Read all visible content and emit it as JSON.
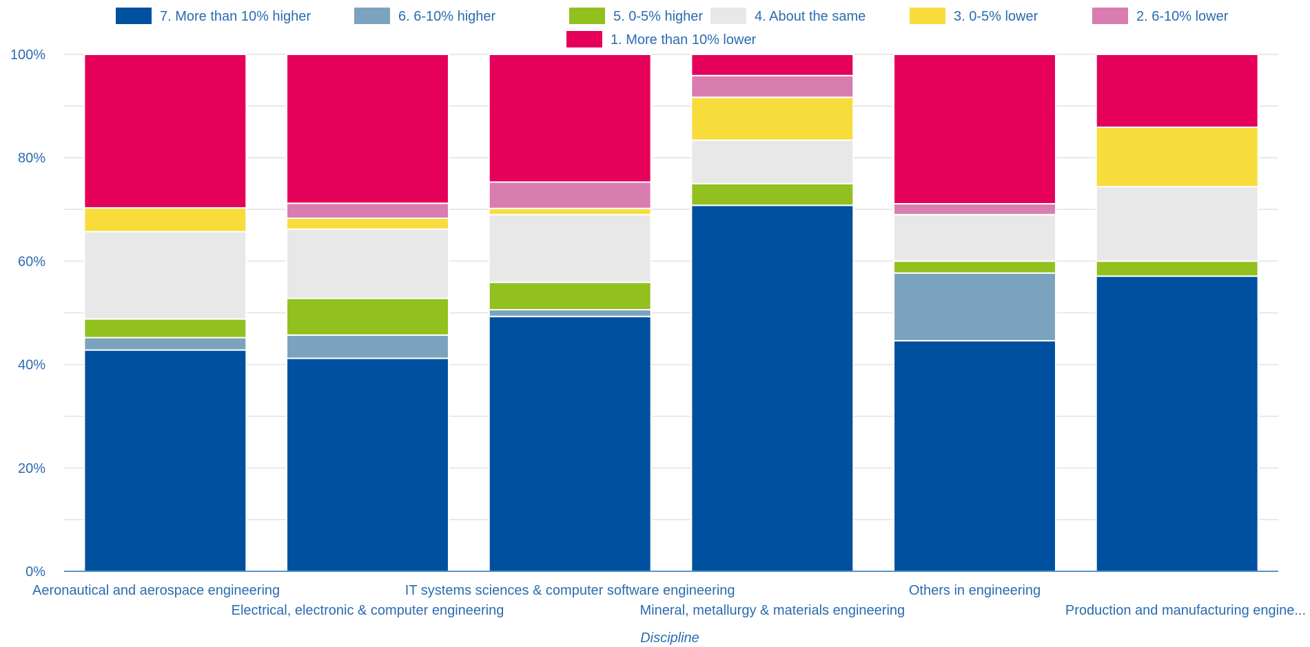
{
  "chart_data": {
    "type": "bar",
    "stacked": true,
    "normalized": true,
    "categories": [
      "Aeronautical and aerospace engineering",
      "Electrical, electronic & computer engineering",
      "IT systems sciences & computer software engineering",
      "Mineral, metallurgy & materials engineering",
      "Others in engineering",
      "Production and manufacturing engine..."
    ],
    "series": [
      {
        "name": "7. More than 10% higher",
        "color": "#0050a0",
        "values": [
          42.8,
          41.2,
          49.3,
          70.8,
          44.6,
          57.1
        ]
      },
      {
        "name": "6. 6-10% higher",
        "color": "#7ba3bd",
        "values": [
          2.4,
          4.5,
          1.3,
          0.0,
          13.1,
          0.0
        ]
      },
      {
        "name": "5. 0-5% higher",
        "color": "#92c01f",
        "values": [
          3.6,
          7.1,
          5.3,
          4.2,
          2.3,
          2.9
        ]
      },
      {
        "name": "4. About the same",
        "color": "#e8e8e8",
        "values": [
          16.9,
          13.4,
          13.1,
          8.4,
          9.0,
          14.4
        ]
      },
      {
        "name": "3. 0-5% lower",
        "color": "#f8dc3c",
        "values": [
          4.6,
          2.1,
          1.2,
          8.3,
          0.0,
          11.5
        ]
      },
      {
        "name": "2. 6-10% lower",
        "color": "#d97cb0",
        "values": [
          0.0,
          2.9,
          5.1,
          4.2,
          2.1,
          0.0
        ]
      },
      {
        "name": "1. More than 10% lower",
        "color": "#e5005a",
        "values": [
          29.7,
          28.8,
          24.7,
          4.1,
          28.9,
          14.1
        ]
      }
    ],
    "y_ticks": [
      "0%",
      "20%",
      "40%",
      "60%",
      "80%",
      "100%"
    ],
    "ylim": [
      0,
      100
    ],
    "xlabel": "Discipline",
    "ylabel": "",
    "grid": true,
    "legend_position": "top"
  }
}
